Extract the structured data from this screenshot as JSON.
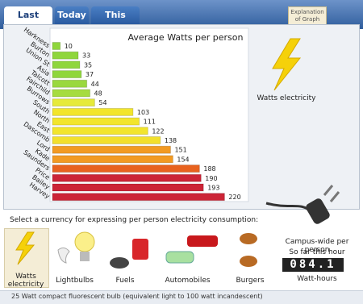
{
  "tabs": [
    "Last Hour",
    "Today",
    "This Month"
  ],
  "explanation": "Explanation of Graph",
  "chart_data": {
    "type": "bar",
    "title": "Average Watts per person",
    "categories": [
      "Harkness",
      "Burton",
      "Union St",
      "Asia",
      "Talcott",
      "Fairchild",
      "Burrows",
      "South",
      "North",
      "East",
      "Dascomb",
      "Lord",
      "Kade",
      "Saunders",
      "Price",
      "Bailey",
      "Harvey"
    ],
    "values": [
      10,
      33,
      35,
      37,
      44,
      48,
      54,
      103,
      111,
      122,
      138,
      151,
      154,
      188,
      190,
      193,
      220
    ],
    "colors": [
      "#8fd63c",
      "#8fd63c",
      "#8fd63c",
      "#8fd63c",
      "#9ad83e",
      "#a6dc40",
      "#e6ea3a",
      "#f2e52c",
      "#f2e52c",
      "#f2e52c",
      "#f2e02c",
      "#f29a22",
      "#f29a22",
      "#e8621e",
      "#cc2436",
      "#cc2436",
      "#cc2436"
    ]
  },
  "unit_label": "Watts electricity",
  "currency_prompt": "Select a currency for expressing per person electricity consumption:",
  "currencies": [
    "Watts electricity",
    "Lightbulbs",
    "Fuels",
    "Automobiles",
    "Burgers"
  ],
  "campus": {
    "line1": "Campus-wide per person",
    "line2": "So far this hour",
    "counter": "084.1",
    "unit": "Watt-hours"
  },
  "footer": "25 Watt compact fluorescent bulb (equivalent light to 100 watt incandescent)"
}
